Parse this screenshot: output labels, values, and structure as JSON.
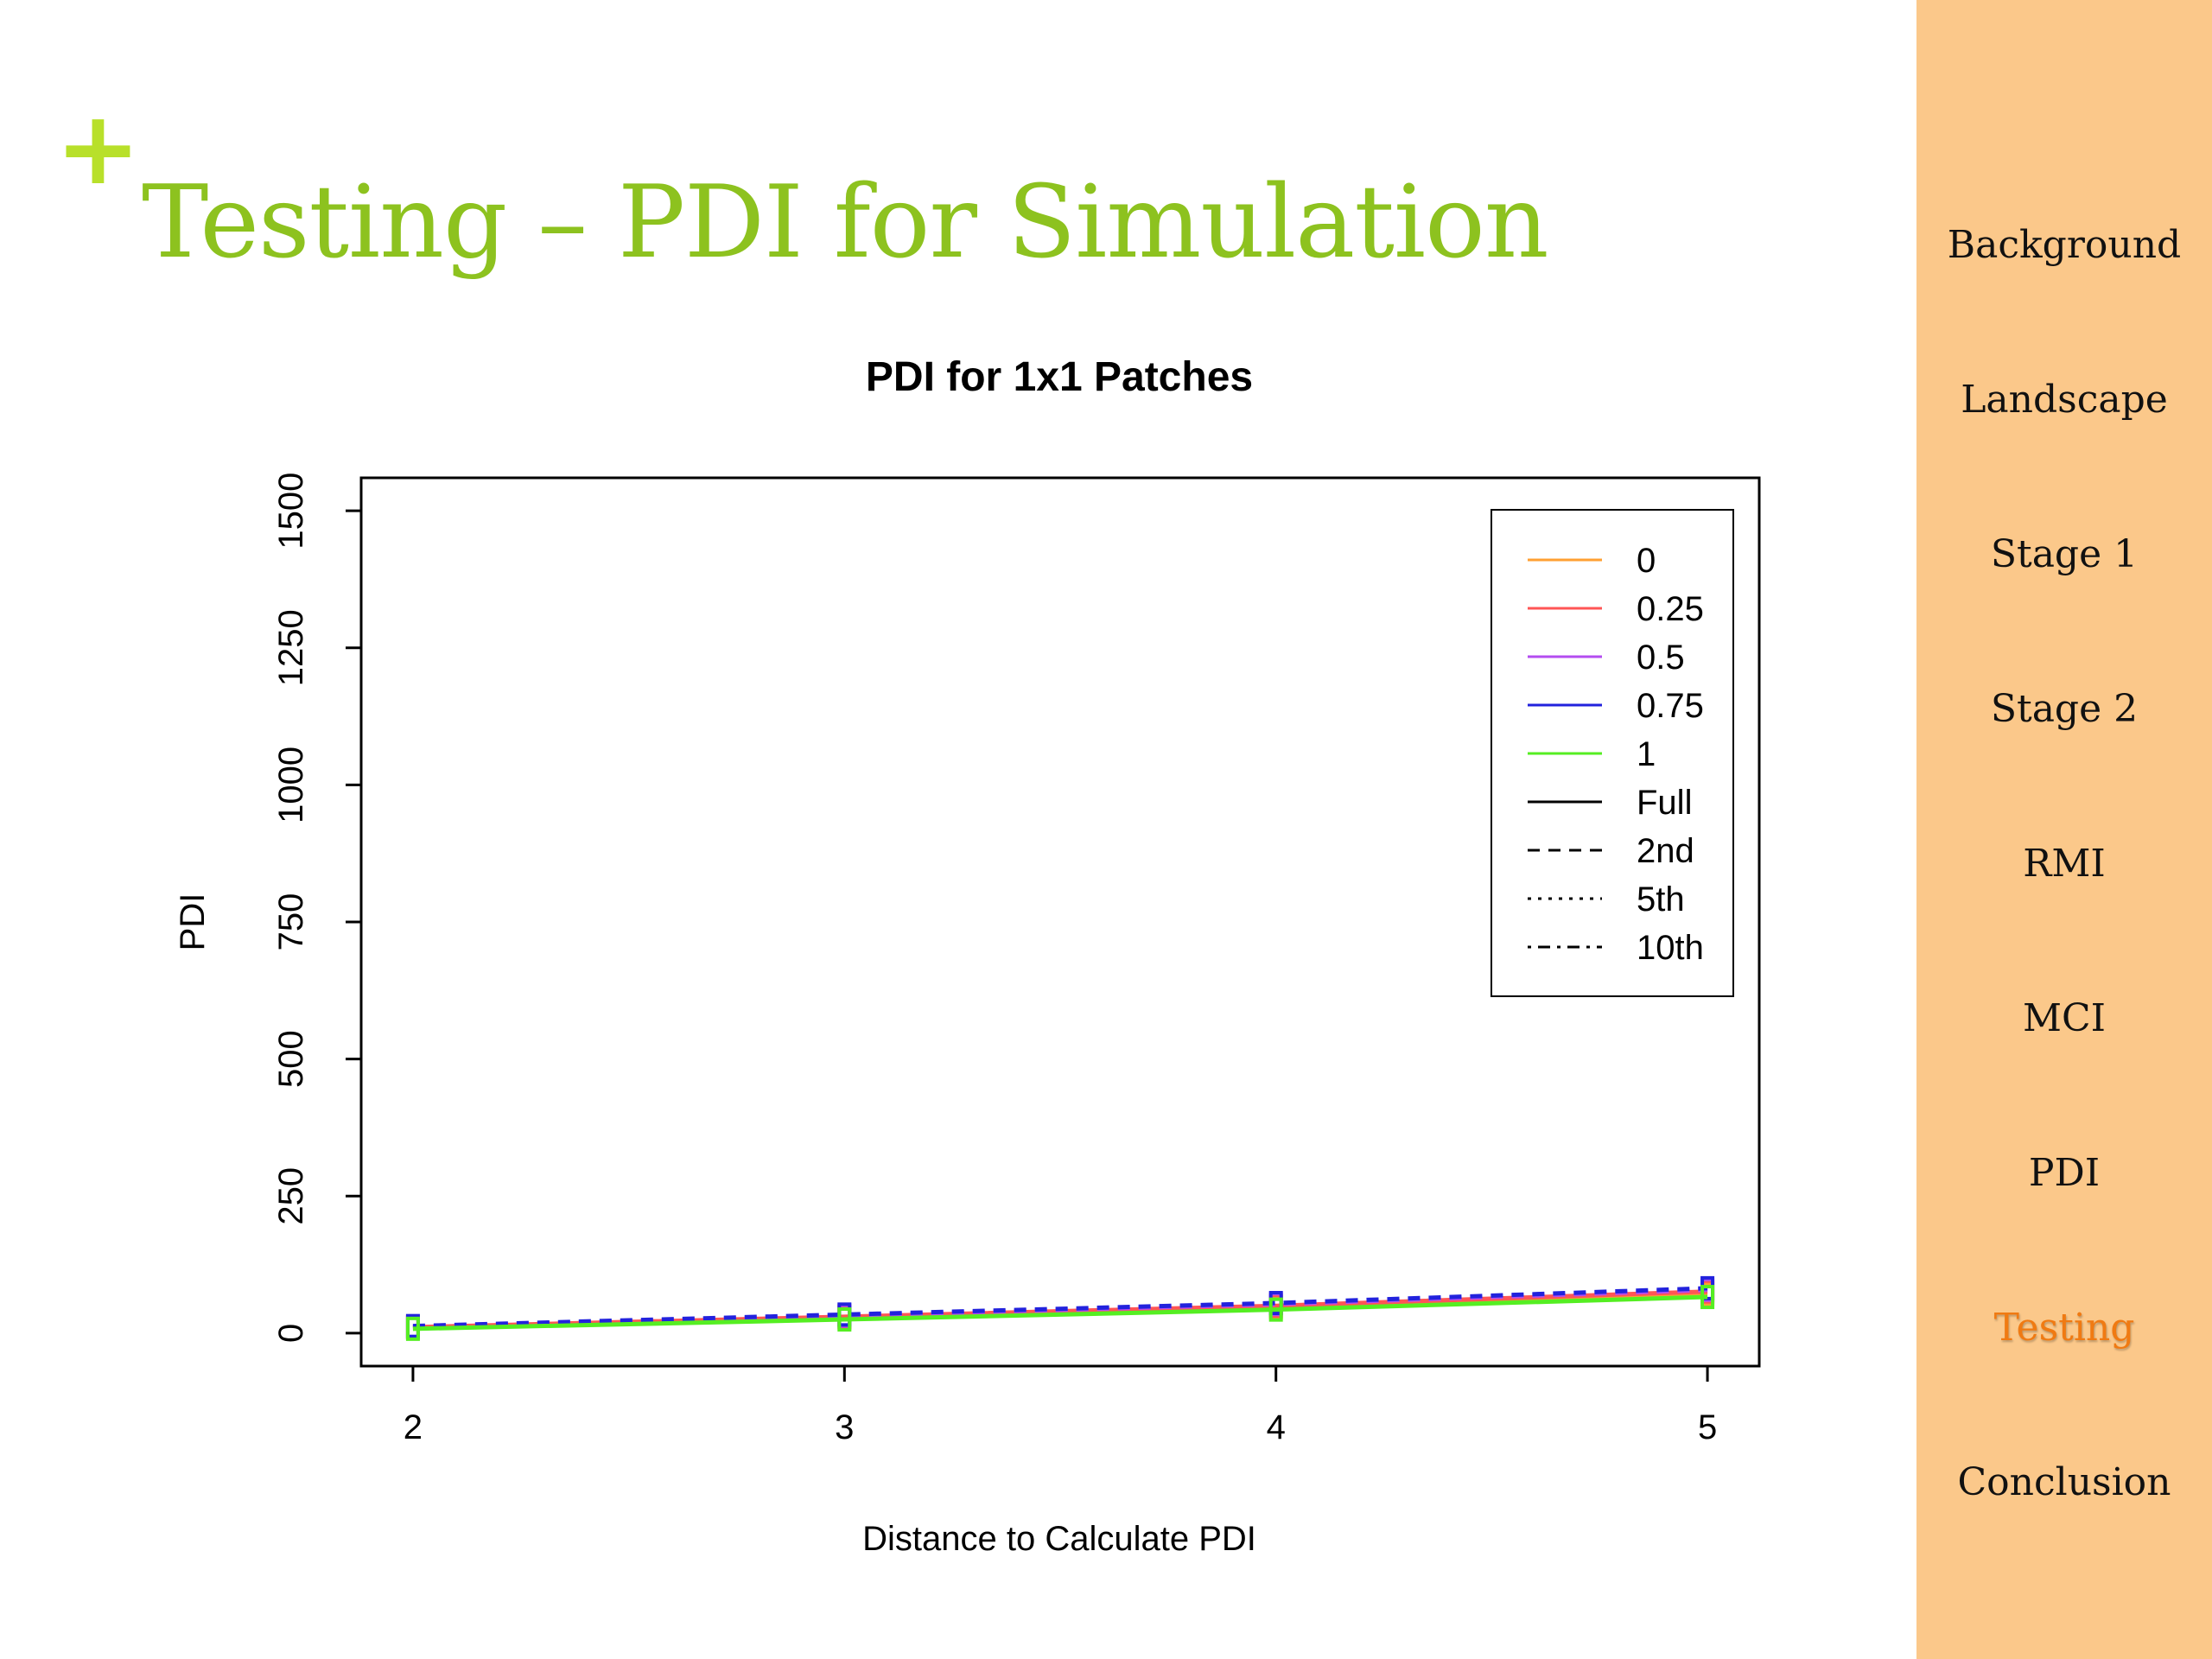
{
  "slide": {
    "plus_symbol": "+",
    "title": "Testing – PDI for Simulation"
  },
  "sidebar": {
    "background_color": "#fbc88a",
    "active_color": "#f07a12",
    "items": [
      {
        "label": "Background",
        "active": false
      },
      {
        "label": "Landscape",
        "active": false
      },
      {
        "label": "Stage 1",
        "active": false
      },
      {
        "label": "Stage 2",
        "active": false
      },
      {
        "label": "RMI",
        "active": false
      },
      {
        "label": "MCI",
        "active": false
      },
      {
        "label": "PDI",
        "active": false
      },
      {
        "label": "Testing",
        "active": true
      },
      {
        "label": "Conclusion",
        "active": false
      }
    ]
  },
  "chart_data": {
    "type": "line",
    "title": "PDI for 1x1 Patches",
    "xlabel": "Distance to Calculate PDI",
    "ylabel": "PDI",
    "x": [
      2,
      3,
      4,
      5
    ],
    "xlim": [
      1.88,
      5.12
    ],
    "ylim": [
      -60,
      1560
    ],
    "xticks": [
      2,
      3,
      4,
      5
    ],
    "yticks": [
      0,
      250,
      500,
      750,
      1000,
      1250,
      1500
    ],
    "grid": false,
    "legend_position": "top-right",
    "legend": [
      {
        "label": "0",
        "color": "#ffa033",
        "dash": "solid"
      },
      {
        "label": "0.25",
        "color": "#ff5555",
        "dash": "solid"
      },
      {
        "label": "0.5",
        "color": "#b44cf0",
        "dash": "solid"
      },
      {
        "label": "0.75",
        "color": "#2222dd",
        "dash": "solid"
      },
      {
        "label": "1",
        "color": "#55ee22",
        "dash": "solid"
      },
      {
        "label": "Full",
        "color": "#000000",
        "dash": "solid"
      },
      {
        "label": "2nd",
        "color": "#000000",
        "dash": "dashed"
      },
      {
        "label": "5th",
        "color": "#000000",
        "dash": "dotted"
      },
      {
        "label": "10th",
        "color": "#000000",
        "dash": "dotdash"
      }
    ],
    "series": [
      {
        "color": "#ffa033",
        "dash": "solid",
        "values": [
          10,
          28,
          47,
          72
        ]
      },
      {
        "color": "#ff5555",
        "dash": "solid",
        "values": [
          11,
          30,
          50,
          76
        ]
      },
      {
        "color": "#b44cf0",
        "dash": "dashed",
        "values": [
          12,
          32,
          53,
          79
        ]
      },
      {
        "color": "#2222dd",
        "dash": "dashed",
        "values": [
          13,
          34,
          55,
          82
        ]
      },
      {
        "color": "#55ee22",
        "dash": "solid",
        "values": [
          8,
          25,
          43,
          66
        ]
      }
    ]
  }
}
